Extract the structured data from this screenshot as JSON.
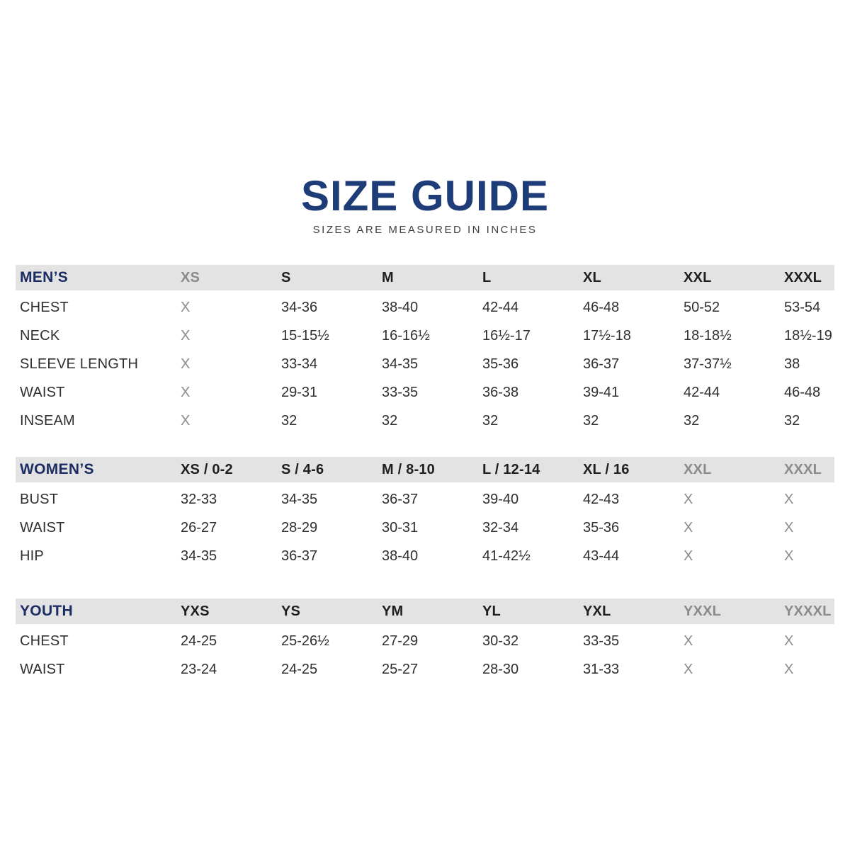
{
  "title": "SIZE GUIDE",
  "subtitle": "SIZES ARE MEASURED IN INCHES",
  "colors": {
    "title_navy": "#1e3c78",
    "section_navy": "#1b2d63",
    "header_band_gray": "#e3e3e3",
    "header_text": "#1f1f1f",
    "body_text": "#2f2f2f",
    "muted_text": "#8b8b8b",
    "background": "#ffffff"
  },
  "sections": [
    {
      "name": "MEN’S",
      "columns": [
        {
          "label": "XS",
          "muted": true
        },
        {
          "label": "S",
          "muted": false
        },
        {
          "label": "M",
          "muted": false
        },
        {
          "label": "L",
          "muted": false
        },
        {
          "label": "XL",
          "muted": false
        },
        {
          "label": "XXL",
          "muted": false
        },
        {
          "label": "XXXL",
          "muted": false
        }
      ],
      "rows": [
        {
          "label": "CHEST",
          "values": [
            "X",
            "34-36",
            "38-40",
            "42-44",
            "46-48",
            "50-52",
            "53-54"
          ]
        },
        {
          "label": "NECK",
          "values": [
            "X",
            "15-15½",
            "16-16½",
            "16½-17",
            "17½-18",
            "18-18½",
            "18½-19"
          ]
        },
        {
          "label": "SLEEVE LENGTH",
          "values": [
            "X",
            "33-34",
            "34-35",
            "35-36",
            "36-37",
            "37-37½",
            "38"
          ]
        },
        {
          "label": "WAIST",
          "values": [
            "X",
            "29-31",
            "33-35",
            "36-38",
            "39-41",
            "42-44",
            "46-48"
          ]
        },
        {
          "label": "INSEAM",
          "values": [
            "X",
            "32",
            "32",
            "32",
            "32",
            "32",
            "32"
          ]
        }
      ]
    },
    {
      "name": "WOMEN’S",
      "columns": [
        {
          "label": "XS / 0-2",
          "muted": false
        },
        {
          "label": "S / 4-6",
          "muted": false
        },
        {
          "label": "M / 8-10",
          "muted": false
        },
        {
          "label": "L / 12-14",
          "muted": false
        },
        {
          "label": "XL / 16",
          "muted": false
        },
        {
          "label": "XXL",
          "muted": true
        },
        {
          "label": "XXXL",
          "muted": true
        }
      ],
      "rows": [
        {
          "label": "BUST",
          "values": [
            "32-33",
            "34-35",
            "36-37",
            "39-40",
            "42-43",
            "X",
            "X"
          ]
        },
        {
          "label": "WAIST",
          "values": [
            "26-27",
            "28-29",
            "30-31",
            "32-34",
            "35-36",
            "X",
            "X"
          ]
        },
        {
          "label": "HIP",
          "values": [
            "34-35",
            "36-37",
            "38-40",
            "41-42½",
            "43-44",
            "X",
            "X"
          ]
        }
      ]
    },
    {
      "name": "YOUTH",
      "columns": [
        {
          "label": "YXS",
          "muted": false
        },
        {
          "label": "YS",
          "muted": false
        },
        {
          "label": "YM",
          "muted": false
        },
        {
          "label": "YL",
          "muted": false
        },
        {
          "label": "YXL",
          "muted": false
        },
        {
          "label": "YXXL",
          "muted": true
        },
        {
          "label": "YXXXL",
          "muted": true
        }
      ],
      "rows": [
        {
          "label": "CHEST",
          "values": [
            "24-25",
            "25-26½",
            "27-29",
            "30-32",
            "33-35",
            "X",
            "X"
          ]
        },
        {
          "label": "WAIST",
          "values": [
            "23-24",
            "24-25",
            "25-27",
            "28-30",
            "31-33",
            "X",
            "X"
          ]
        }
      ]
    }
  ]
}
